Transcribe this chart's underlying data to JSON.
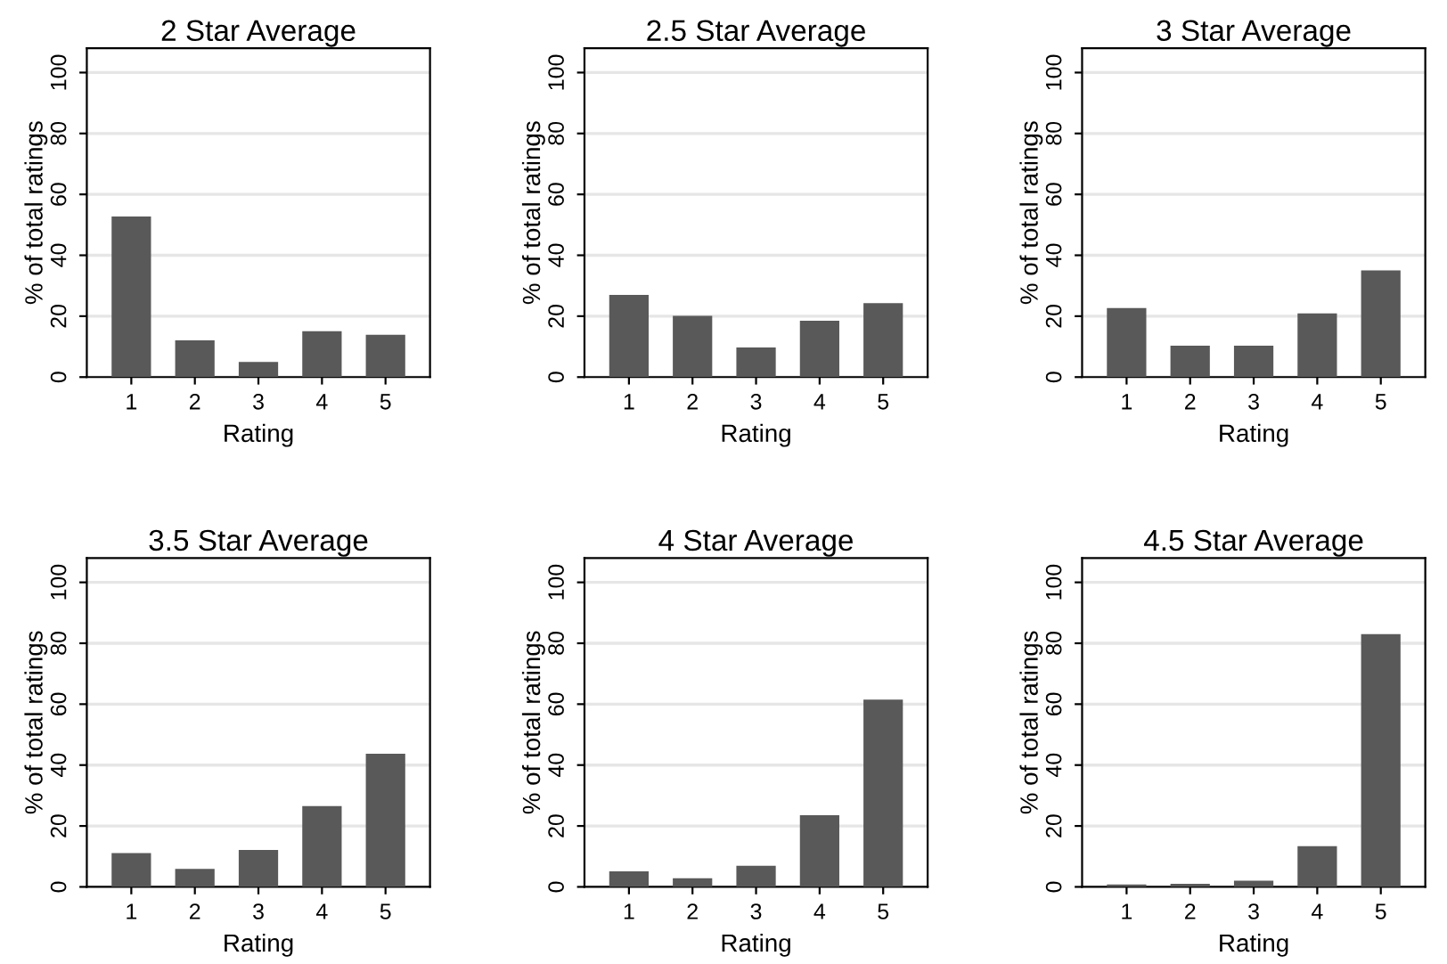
{
  "chart_data": [
    {
      "type": "bar",
      "title": "2 Star Average",
      "xlabel": "Rating",
      "ylabel": "% of total ratings",
      "categories": [
        "1",
        "2",
        "3",
        "4",
        "5"
      ],
      "values": [
        52.7,
        12.1,
        5.0,
        15.1,
        13.9
      ],
      "color": "#595959",
      "ylim": [
        0,
        108
      ],
      "yticks": [
        0,
        20,
        40,
        60,
        80,
        100
      ],
      "grid": "y",
      "legend": false
    },
    {
      "type": "bar",
      "title": "2.5 Star Average",
      "xlabel": "Rating",
      "ylabel": "% of total ratings",
      "categories": [
        "1",
        "2",
        "3",
        "4",
        "5"
      ],
      "values": [
        27.0,
        20.1,
        9.7,
        18.5,
        24.3
      ],
      "color": "#595959",
      "ylim": [
        0,
        108
      ],
      "yticks": [
        0,
        20,
        40,
        60,
        80,
        100
      ],
      "grid": "y",
      "legend": false
    },
    {
      "type": "bar",
      "title": "3 Star Average",
      "xlabel": "Rating",
      "ylabel": "% of total ratings",
      "categories": [
        "1",
        "2",
        "3",
        "4",
        "5"
      ],
      "values": [
        22.7,
        10.3,
        10.3,
        20.9,
        35.0
      ],
      "color": "#595959",
      "ylim": [
        0,
        108
      ],
      "yticks": [
        0,
        20,
        40,
        60,
        80,
        100
      ],
      "grid": "y",
      "legend": false
    },
    {
      "type": "bar",
      "title": "3.5 Star Average",
      "xlabel": "Rating",
      "ylabel": "% of total ratings",
      "categories": [
        "1",
        "2",
        "3",
        "4",
        "5"
      ],
      "values": [
        11.1,
        5.9,
        12.1,
        26.5,
        43.7
      ],
      "color": "#595959",
      "ylim": [
        0,
        108
      ],
      "yticks": [
        0,
        20,
        40,
        60,
        80,
        100
      ],
      "grid": "y",
      "legend": false
    },
    {
      "type": "bar",
      "title": "4 Star Average",
      "xlabel": "Rating",
      "ylabel": "% of total ratings",
      "categories": [
        "1",
        "2",
        "3",
        "4",
        "5"
      ],
      "values": [
        5.1,
        2.8,
        6.9,
        23.5,
        61.5
      ],
      "color": "#595959",
      "ylim": [
        0,
        108
      ],
      "yticks": [
        0,
        20,
        40,
        60,
        80,
        100
      ],
      "grid": "y",
      "legend": false
    },
    {
      "type": "bar",
      "title": "4.5 Star Average",
      "xlabel": "Rating",
      "ylabel": "% of total ratings",
      "categories": [
        "1",
        "2",
        "3",
        "4",
        "5"
      ],
      "values": [
        0.8,
        1.0,
        2.0,
        13.4,
        83.0
      ],
      "color": "#595959",
      "ylim": [
        0,
        108
      ],
      "yticks": [
        0,
        20,
        40,
        60,
        80,
        100
      ],
      "grid": "y",
      "legend": false
    }
  ]
}
